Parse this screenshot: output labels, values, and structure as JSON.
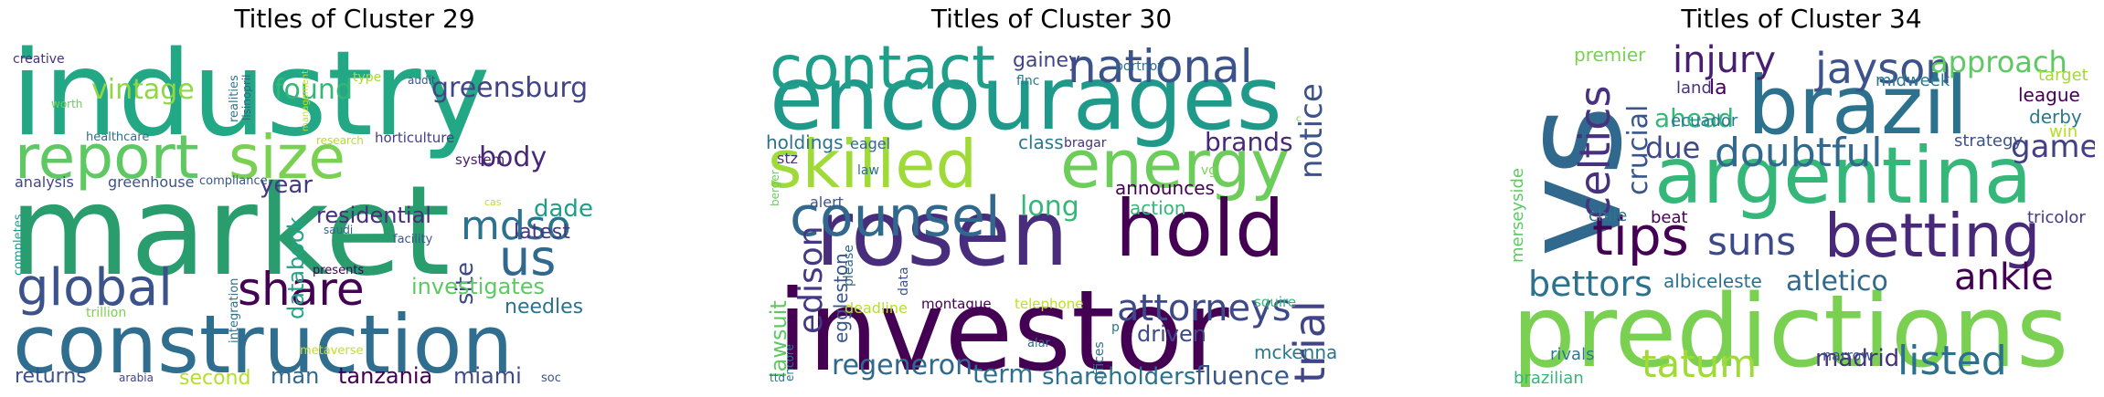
{
  "panels": [
    {
      "title": "Titles of Cluster 29",
      "words": [
        {
          "t": "industry",
          "c": "#22a884"
        },
        {
          "t": "market",
          "c": "#2a9d6e"
        },
        {
          "t": "construction",
          "c": "#2f6e8e"
        },
        {
          "t": "report",
          "c": "#5ec962"
        },
        {
          "t": "size",
          "c": "#7ad151"
        },
        {
          "t": "global",
          "c": "#3b528b"
        },
        {
          "t": "share",
          "c": "#440154"
        },
        {
          "t": "us",
          "c": "#31688e"
        },
        {
          "t": "mdso",
          "c": "#2c728e"
        },
        {
          "t": "greensburg",
          "c": "#414487"
        },
        {
          "t": "vintage",
          "c": "#8fd744"
        },
        {
          "t": "found",
          "c": "#35b779"
        },
        {
          "t": "body",
          "c": "#482878"
        },
        {
          "t": "year",
          "c": "#443983"
        },
        {
          "t": "residential",
          "c": "#472d7b"
        },
        {
          "t": "dade",
          "c": "#1f9e89"
        },
        {
          "t": "latest",
          "c": "#453781"
        },
        {
          "t": "databook",
          "c": "#20a386"
        },
        {
          "t": "site",
          "c": "#3e4989"
        },
        {
          "t": "investigates",
          "c": "#5ec962"
        },
        {
          "t": "needles",
          "c": "#2c728e"
        },
        {
          "t": "returns",
          "c": "#3b528b"
        },
        {
          "t": "second",
          "c": "#b5de2b"
        },
        {
          "t": "man",
          "c": "#31688e"
        },
        {
          "t": "tanzania",
          "c": "#440154"
        },
        {
          "t": "miami",
          "c": "#3e4989"
        },
        {
          "t": "creative",
          "c": "#46327e"
        },
        {
          "t": "realities",
          "c": "#2a788e"
        },
        {
          "t": "lisinopril",
          "c": "#34618d"
        },
        {
          "t": "management",
          "c": "#bddf26"
        },
        {
          "t": "type",
          "c": "#a8db34"
        },
        {
          "t": "audit",
          "c": "#39568c"
        },
        {
          "t": "worth",
          "c": "#6ccd5a"
        },
        {
          "t": "healthcare",
          "c": "#2d708e"
        },
        {
          "t": "research",
          "c": "#b5de2b"
        },
        {
          "t": "horticulture",
          "c": "#423f85"
        },
        {
          "t": "system",
          "c": "#481f70"
        },
        {
          "t": "analysis",
          "c": "#414487"
        },
        {
          "t": "greenhouse",
          "c": "#3b528b"
        },
        {
          "t": "compliance",
          "c": "#38588c"
        },
        {
          "t": "cas",
          "c": "#bddf26"
        },
        {
          "t": "completes",
          "c": "#1f9a8a"
        },
        {
          "t": "saudi",
          "c": "#31688e"
        },
        {
          "t": "facility",
          "c": "#39568c"
        },
        {
          "t": "integration",
          "c": "#2d708e"
        },
        {
          "t": "presents",
          "c": "#440154"
        },
        {
          "t": "trillion",
          "c": "#7ad151"
        },
        {
          "t": "metaverse",
          "c": "#c2df23"
        },
        {
          "t": "arabia",
          "c": "#414487"
        },
        {
          "t": "soc",
          "c": "#3b528b"
        }
      ]
    },
    {
      "title": "Titles of Cluster 30",
      "words": [
        {
          "t": "encourages",
          "c": "#1f9a8a"
        },
        {
          "t": "investor",
          "c": "#440154"
        },
        {
          "t": "rosen",
          "c": "#472d7b"
        },
        {
          "t": "contact",
          "c": "#1f9e89"
        },
        {
          "t": "skilled",
          "c": "#a0da39"
        },
        {
          "t": "energy",
          "c": "#6ccd5a"
        },
        {
          "t": "hold",
          "c": "#440154"
        },
        {
          "t": "counsel",
          "c": "#31688e"
        },
        {
          "t": "national",
          "c": "#3b528b"
        },
        {
          "t": "attorneys",
          "c": "#3e4989"
        },
        {
          "t": "trial",
          "c": "#414487"
        },
        {
          "t": "notice",
          "c": "#3b528b"
        },
        {
          "t": "edison",
          "c": "#443983"
        },
        {
          "t": "long",
          "c": "#35b779"
        },
        {
          "t": "regeneron",
          "c": "#31688e"
        },
        {
          "t": "term",
          "c": "#2d708e"
        },
        {
          "t": "shareholders",
          "c": "#2c728e"
        },
        {
          "t": "fluence",
          "c": "#38588c"
        },
        {
          "t": "brands",
          "c": "#482878"
        },
        {
          "t": "gainey",
          "c": "#414487"
        },
        {
          "t": "holdings",
          "c": "#2c728e"
        },
        {
          "t": "class",
          "c": "#2a788e"
        },
        {
          "t": "announces",
          "c": "#440154"
        },
        {
          "t": "action",
          "c": "#35b779"
        },
        {
          "t": "driven",
          "c": "#3e4989"
        },
        {
          "t": "mckenna",
          "c": "#2a788e"
        },
        {
          "t": "lawsuit",
          "c": "#5ec962"
        },
        {
          "t": "eagel",
          "c": "#31688e"
        },
        {
          "t": "stz",
          "c": "#453781"
        },
        {
          "t": "alert",
          "c": "#3b528b"
        },
        {
          "t": "eggleston",
          "c": "#39568c"
        },
        {
          "t": "flnc",
          "c": "#2a788e"
        },
        {
          "t": "portnoy",
          "c": "#2d708e"
        },
        {
          "t": "berger",
          "c": "#6ccd5a"
        },
        {
          "t": "bragar",
          "c": "#46327e"
        },
        {
          "t": "law",
          "c": "#2d708e"
        },
        {
          "t": "vg",
          "c": "#7ad151"
        },
        {
          "t": "please",
          "c": "#31688e"
        },
        {
          "t": "data",
          "c": "#3b528b"
        },
        {
          "t": "deadline",
          "c": "#b5de2b"
        },
        {
          "t": "montague",
          "c": "#440154"
        },
        {
          "t": "telephone",
          "c": "#bddf26"
        },
        {
          "t": "squire",
          "c": "#35b779"
        },
        {
          "t": "encore",
          "c": "#2a788e"
        },
        {
          "t": "offices",
          "c": "#2d708e"
        },
        {
          "t": "alar",
          "c": "#2d708e"
        },
        {
          "t": "p",
          "c": "#2a788e"
        },
        {
          "t": "ttd",
          "c": "#2c728e"
        },
        {
          "t": "c",
          "c": "#7ad151"
        }
      ]
    },
    {
      "title": "Titles of Cluster 34",
      "words": [
        {
          "t": "vs",
          "c": "#31688e"
        },
        {
          "t": "predictions",
          "c": "#7ad151"
        },
        {
          "t": "brazil",
          "c": "#2c728e"
        },
        {
          "t": "argentina",
          "c": "#35b779"
        },
        {
          "t": "betting",
          "c": "#482878"
        },
        {
          "t": "tips",
          "c": "#440154"
        },
        {
          "t": "celtics",
          "c": "#46327e"
        },
        {
          "t": "jayson",
          "c": "#3b528b"
        },
        {
          "t": "injury",
          "c": "#481f70"
        },
        {
          "t": "doubtful",
          "c": "#31688e"
        },
        {
          "t": "suns",
          "c": "#3e4989"
        },
        {
          "t": "ankle",
          "c": "#440154"
        },
        {
          "t": "bettors",
          "c": "#2c728e"
        },
        {
          "t": "listed",
          "c": "#2d708e"
        },
        {
          "t": "tatum",
          "c": "#a0da39"
        },
        {
          "t": "approach",
          "c": "#5ec962"
        },
        {
          "t": "games",
          "c": "#423f85"
        },
        {
          "t": "crucial",
          "c": "#39568c"
        },
        {
          "t": "due",
          "c": "#3e4989"
        },
        {
          "t": "ahead",
          "c": "#35b779"
        },
        {
          "t": "atletico",
          "c": "#31688e"
        },
        {
          "t": "madrid",
          "c": "#46327e"
        },
        {
          "t": "premier",
          "c": "#7ad151"
        },
        {
          "t": "la",
          "c": "#440154"
        },
        {
          "t": "land",
          "c": "#46327e"
        },
        {
          "t": "ecuador",
          "c": "#2a788e"
        },
        {
          "t": "league",
          "c": "#440154"
        },
        {
          "t": "derby",
          "c": "#2a788e"
        },
        {
          "t": "win",
          "c": "#b5de2b"
        },
        {
          "t": "target",
          "c": "#a0da39"
        },
        {
          "t": "midweek",
          "c": "#2a788e"
        },
        {
          "t": "strategy",
          "c": "#3b528b"
        },
        {
          "t": "tricolor",
          "c": "#443983"
        },
        {
          "t": "chile",
          "c": "#2a788e"
        },
        {
          "t": "beat",
          "c": "#440154"
        },
        {
          "t": "albiceleste",
          "c": "#2c728e"
        },
        {
          "t": "merseyside",
          "c": "#5ec962"
        },
        {
          "t": "rivals",
          "c": "#2a788e"
        },
        {
          "t": "narrow",
          "c": "#3b528b"
        },
        {
          "t": "brazilian",
          "c": "#35b779"
        }
      ]
    }
  ]
}
